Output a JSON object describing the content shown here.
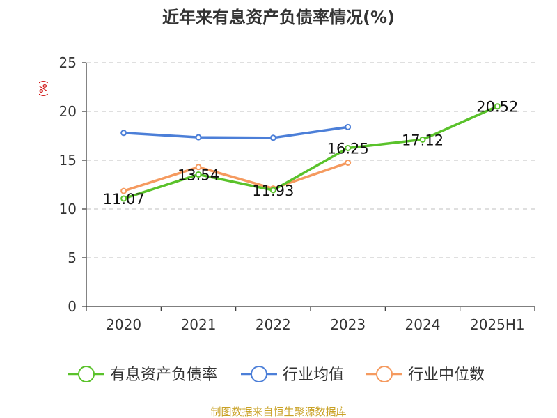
{
  "chart_data": {
    "type": "line",
    "title": "近年来有息资产负债率情况(%)",
    "ylabel": "(%)",
    "xlabel": "",
    "categories": [
      "2020",
      "2021",
      "2022",
      "2023",
      "2024",
      "2025H1"
    ],
    "ylim": [
      0,
      25
    ],
    "yticks": [
      0,
      5,
      10,
      15,
      20,
      25
    ],
    "grid": true,
    "legend_position": "bottom",
    "series": [
      {
        "name": "有息资产负债率",
        "color": "#5ac22b",
        "values": [
          11.07,
          13.54,
          11.93,
          16.25,
          17.12,
          20.52
        ],
        "show_labels": true
      },
      {
        "name": "行业均值",
        "color": "#4c7fd8",
        "values": [
          17.8,
          17.35,
          17.3,
          18.4,
          null,
          null
        ],
        "show_labels": false
      },
      {
        "name": "行业中位数",
        "color": "#f59a5f",
        "values": [
          11.85,
          14.3,
          12.1,
          14.75,
          null,
          null
        ],
        "show_labels": false
      }
    ]
  },
  "source_note": "制图数据来自恒生聚源数据库",
  "colors": {
    "title": "#333333",
    "axis": "#333333",
    "grid": "#cccccc",
    "ylabel": "#cc0000",
    "source_note": "#c9a227"
  }
}
